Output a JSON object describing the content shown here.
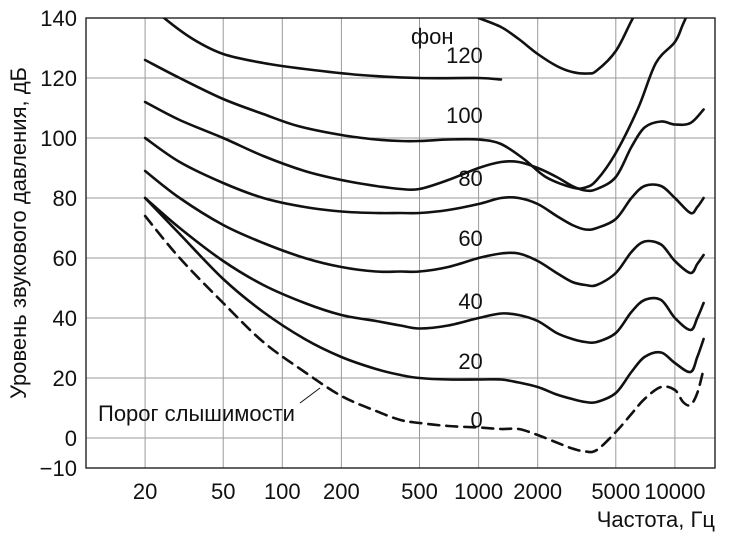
{
  "chart_data": {
    "type": "line",
    "x_scale": "log",
    "xlabel": "Частота, Гц",
    "ylabel": "Уровень звукового давления, дБ",
    "xlim": [
      10,
      16000
    ],
    "ylim": [
      -10,
      140
    ],
    "grid": true,
    "x_ticks": [
      {
        "value": 20,
        "label": "20"
      },
      {
        "value": 50,
        "label": "50"
      },
      {
        "value": 100,
        "label": "100"
      },
      {
        "value": 200,
        "label": "200"
      },
      {
        "value": 500,
        "label": "500"
      },
      {
        "value": 1000,
        "label": "1000"
      },
      {
        "value": 2000,
        "label": "2000"
      },
      {
        "value": 5000,
        "label": "5000"
      },
      {
        "value": 10000,
        "label": "10000"
      }
    ],
    "y_ticks": [
      {
        "value": 140,
        "label": "140"
      },
      {
        "value": 120,
        "label": "120"
      },
      {
        "value": 100,
        "label": "100"
      },
      {
        "value": 80,
        "label": "80"
      },
      {
        "value": 60,
        "label": "60"
      },
      {
        "value": 40,
        "label": "40"
      },
      {
        "value": 20,
        "label": "20"
      },
      {
        "value": 0,
        "label": "0"
      },
      {
        "value": -10,
        "label": "−10"
      }
    ],
    "unit_label": "фон",
    "series": [
      {
        "name": "120",
        "style": "solid",
        "label_at": [
          1050,
          125
        ],
        "x": [
          20,
          25,
          35,
          50,
          80,
          130,
          250,
          500,
          1000,
          1300
        ],
        "y": [
          146,
          140,
          133,
          128,
          125,
          123,
          121,
          120,
          120,
          119.5
        ]
      },
      {
        "name": "",
        "style": "solid",
        "x": [
          1000,
          1300,
          1600,
          2000,
          2500,
          3000,
          3600,
          4000,
          5000,
          6000,
          7000,
          8000
        ],
        "y": [
          140,
          137,
          133,
          128,
          124,
          122,
          121.5,
          122.5,
          129,
          139,
          147,
          150
        ]
      },
      {
        "name": "100",
        "style": "solid",
        "label_at": [
          1050,
          105
        ],
        "x": [
          20,
          30,
          50,
          80,
          120,
          200,
          300,
          400,
          500,
          700,
          1000,
          1300,
          1700,
          2200,
          3000,
          3500,
          4000,
          5000,
          6500,
          8000,
          10000,
          11000,
          12500
        ],
        "y": [
          126,
          120,
          113,
          108,
          104,
          101,
          99.5,
          99,
          99,
          99.5,
          99.5,
          98,
          93,
          87,
          83.5,
          83.5,
          86,
          95,
          110,
          125,
          132,
          138,
          146
        ]
      },
      {
        "name": "80",
        "style": "solid",
        "label_at": [
          1050,
          84
        ],
        "x": [
          20,
          30,
          50,
          80,
          130,
          200,
          300,
          400,
          500,
          700,
          1000,
          1300,
          1600,
          2000,
          2500,
          3000,
          3500,
          4000,
          5000,
          6000,
          7000,
          8500,
          10000,
          12000,
          14000
        ],
        "y": [
          112,
          106,
          100,
          94,
          89,
          86,
          84,
          83,
          83,
          86,
          90,
          92,
          92,
          90,
          87,
          84,
          82.5,
          83,
          87,
          97,
          103.5,
          105.5,
          104.5,
          105,
          109.5
        ]
      },
      {
        "name": "60",
        "style": "solid",
        "label_at": [
          1050,
          64
        ],
        "x": [
          20,
          30,
          50,
          80,
          130,
          200,
          300,
          400,
          500,
          700,
          1000,
          1300,
          1600,
          2000,
          2500,
          3000,
          3500,
          4000,
          5000,
          6000,
          7000,
          8500,
          10000,
          12000,
          13000,
          14000
        ],
        "y": [
          100,
          92,
          85,
          80,
          77,
          75.5,
          75,
          75,
          75,
          76,
          78,
          80,
          80,
          78,
          74,
          71,
          69.5,
          70,
          73,
          80,
          84,
          84,
          80,
          75,
          77,
          80
        ]
      },
      {
        "name": "40",
        "style": "solid",
        "label_at": [
          1050,
          43
        ],
        "x": [
          20,
          30,
          50,
          80,
          130,
          200,
          300,
          400,
          500,
          700,
          1000,
          1300,
          1600,
          2000,
          2500,
          3000,
          3500,
          4000,
          5000,
          6000,
          7000,
          8500,
          10000,
          12000,
          13000,
          14000
        ],
        "y": [
          89,
          80,
          71,
          65,
          60,
          57,
          55.5,
          55.5,
          55.5,
          57,
          60,
          61.5,
          61.5,
          59,
          55,
          52,
          51,
          51,
          55,
          62,
          65.5,
          64.5,
          59,
          55,
          58,
          61
        ]
      },
      {
        "name": "20",
        "style": "solid",
        "label_at": [
          1050,
          23
        ],
        "x": [
          20,
          30,
          50,
          80,
          130,
          200,
          300,
          400,
          500,
          700,
          1000,
          1300,
          1600,
          2000,
          2500,
          3000,
          3500,
          4000,
          5000,
          6000,
          7000,
          8500,
          10000,
          12000,
          13000,
          14000
        ],
        "y": [
          80,
          70,
          59,
          51,
          45,
          41,
          39,
          37.5,
          36.5,
          37.5,
          40,
          41.5,
          41,
          39,
          35,
          33,
          32,
          32,
          35,
          42,
          46,
          46,
          40,
          36,
          40,
          45
        ]
      },
      {
        "name": "",
        "style": "solid",
        "x": [
          20,
          30,
          50,
          80,
          130,
          200,
          300,
          400,
          500,
          700,
          1000,
          1300,
          1600,
          2000,
          2500,
          3000,
          3500,
          4000,
          5000,
          6000,
          7000,
          8500,
          10000,
          12000,
          13000,
          14000
        ],
        "y": [
          80,
          68,
          53,
          42,
          33,
          27,
          23,
          21,
          20,
          19.5,
          19.5,
          19.5,
          18.5,
          17,
          14.5,
          13,
          12,
          12,
          15,
          22,
          27,
          28.5,
          25,
          22,
          27,
          33
        ]
      },
      {
        "name": "0",
        "style": "dashed",
        "label_at": [
          1050,
          3.5
        ],
        "x": [
          20,
          30,
          50,
          80,
          130,
          200,
          300,
          400,
          500,
          700,
          1000,
          1300,
          1600,
          2000,
          2500,
          3000,
          3500,
          4000,
          5000,
          6000,
          7000,
          8500,
          10000,
          11000,
          12000,
          13000,
          14000
        ],
        "y": [
          74,
          60,
          45,
          32,
          22,
          14,
          9,
          6,
          5,
          4,
          3.5,
          3,
          3,
          1,
          -1.5,
          -3.5,
          -4.5,
          -4,
          2,
          8,
          13,
          17,
          16,
          12,
          11,
          15,
          23
        ]
      }
    ],
    "annotation": {
      "text": "Порог слышимости",
      "text_anchor_data": [
        160,
        8
      ],
      "points_to": [
        250,
        20
      ]
    }
  }
}
